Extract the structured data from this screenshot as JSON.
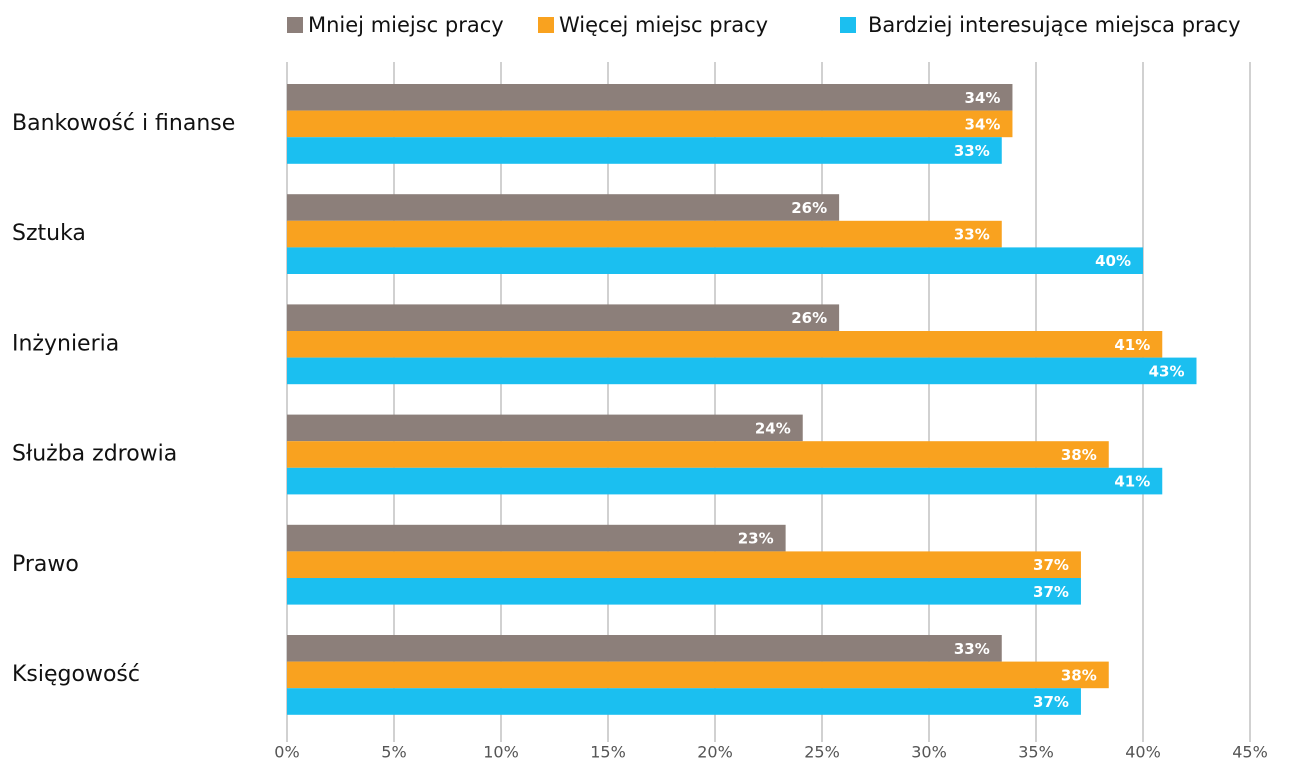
{
  "chart_data": {
    "type": "bar",
    "orientation": "horizontal",
    "categories": [
      "Bankowość i finanse",
      "Sztuka",
      "Inżynieria",
      "Służba zdrowia",
      "Prawo",
      "Księgowość"
    ],
    "series": [
      {
        "name": "Mniej miejsc pracy",
        "color": "#8c7f7a",
        "values": [
          33.9,
          25.8,
          25.8,
          24.1,
          23.3,
          33.4
        ],
        "value_labels": [
          "34%",
          "26%",
          "26%",
          "24%",
          "23%",
          "33%"
        ]
      },
      {
        "name": "Więcej miejsc pracy",
        "color": "#f9a21f",
        "values": [
          33.9,
          33.4,
          40.9,
          38.4,
          37.1,
          38.4
        ],
        "value_labels": [
          "34%",
          "33%",
          "41%",
          "38%",
          "37%",
          "38%"
        ]
      },
      {
        "name": "Bardziej interesujące miejsca pracy",
        "color": "#1bbff0",
        "values": [
          33.4,
          40.0,
          42.5,
          40.9,
          37.1,
          37.1
        ],
        "value_labels": [
          "33%",
          "40%",
          "43%",
          "41%",
          "37%",
          "37%"
        ]
      }
    ],
    "xlim": [
      0,
      45
    ],
    "xticks": [
      {
        "value": 0,
        "label": "0%"
      },
      {
        "value": 5,
        "label": "5%"
      },
      {
        "value": 10,
        "label": "10%"
      },
      {
        "value": 15,
        "label": "15%"
      },
      {
        "value": 20,
        "label": "20%"
      },
      {
        "value": 25,
        "label": "25%"
      },
      {
        "value": 30,
        "label": "30%"
      },
      {
        "value": 35,
        "label": "35%"
      },
      {
        "value": 40,
        "label": "40%"
      },
      {
        "value": 45,
        "label": "45%"
      }
    ],
    "grid": true,
    "legend": "top"
  }
}
